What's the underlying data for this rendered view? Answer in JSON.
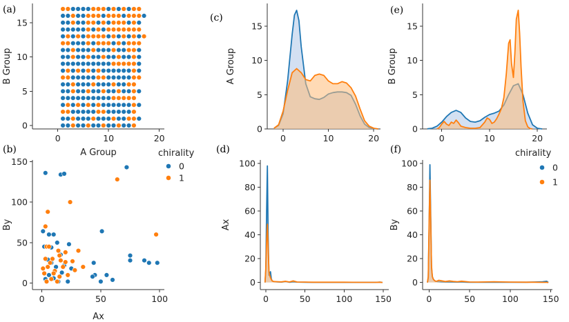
{
  "colors": {
    "c0": "#1f77b4",
    "c1": "#ff7f0e",
    "fill0": "#aec7e8",
    "fill1": "#ffbb78"
  },
  "legend": {
    "title": "chirality",
    "labels": [
      "0",
      "1"
    ]
  },
  "chart_data": [
    {
      "id": "a",
      "panel_label": "(a)",
      "type": "scatter",
      "xlabel": "A Group",
      "ylabel": "B Group",
      "xlim": [
        -5,
        21
      ],
      "ylim": [
        -0.5,
        17.8
      ],
      "xticks": [
        0,
        10,
        20
      ],
      "yticks": [
        0,
        5,
        10,
        15
      ],
      "grid_x": [
        1,
        17
      ],
      "grid_y": [
        0,
        17
      ],
      "series": [
        {
          "name": "0",
          "pattern": [
            ".............",
            "..",
            ""
          ]
        },
        {
          "name": "1"
        }
      ]
    },
    {
      "id": "b",
      "panel_label": "(b)",
      "type": "scatter",
      "xlabel": "Ax",
      "ylabel": "By",
      "xlim": [
        -8,
        104
      ],
      "ylim": [
        -8,
        152
      ],
      "xticks": [
        0,
        50,
        100
      ],
      "yticks": [
        0,
        50,
        100,
        150
      ],
      "series": [
        {
          "name": "0",
          "points": [
            [
              3,
              136
            ],
            [
              16,
              134
            ],
            [
              19,
              135
            ],
            [
              72,
              143
            ],
            [
              51,
              64
            ],
            [
              1,
              64
            ],
            [
              6,
              60
            ],
            [
              10,
              60
            ],
            [
              13,
              50
            ],
            [
              23,
              48
            ],
            [
              2,
              45
            ],
            [
              8,
              44
            ],
            [
              16,
              35
            ],
            [
              5,
              29
            ],
            [
              8,
              25
            ],
            [
              75,
              34
            ],
            [
              75,
              28
            ],
            [
              87,
              28
            ],
            [
              91,
              25
            ],
            [
              98,
              25
            ],
            [
              44,
              25
            ],
            [
              45,
              10
            ],
            [
              50,
              2
            ],
            [
              55,
              10
            ],
            [
              60,
              4
            ],
            [
              43,
              8
            ],
            [
              22,
              2
            ],
            [
              25,
              18
            ],
            [
              17,
              13
            ],
            [
              12,
              20
            ],
            [
              3,
              5
            ],
            [
              6,
              10
            ],
            [
              10,
              6
            ],
            [
              14,
              2
            ],
            [
              19,
              22
            ]
          ]
        },
        {
          "name": "1",
          "points": [
            [
              64,
              128
            ],
            [
              24,
              100
            ],
            [
              5,
              88
            ],
            [
              3,
              70
            ],
            [
              4,
              45
            ],
            [
              6,
              45
            ],
            [
              14,
              40
            ],
            [
              31,
              40
            ],
            [
              9,
              30
            ],
            [
              15,
              34
            ],
            [
              20,
              38
            ],
            [
              26,
              27
            ],
            [
              28,
              16
            ],
            [
              35,
              20
            ],
            [
              20,
              26
            ],
            [
              97,
              60
            ],
            [
              2,
              12
            ],
            [
              5,
              20
            ],
            [
              8,
              5
            ],
            [
              11,
              15
            ],
            [
              15,
              8
            ],
            [
              18,
              20
            ],
            [
              22,
              10
            ],
            [
              4,
              2
            ],
            [
              13,
              2
            ],
            [
              7,
              25
            ],
            [
              10,
              12
            ],
            [
              3,
              30
            ],
            [
              16,
              28
            ],
            [
              1,
              18
            ]
          ]
        }
      ]
    },
    {
      "id": "c",
      "panel_label": "(c)",
      "type": "area",
      "xlabel": "",
      "ylabel": "A Group",
      "xlim": [
        -3.5,
        21.5
      ],
      "ylim": [
        0,
        18.3
      ],
      "xticks": [
        0,
        10,
        20
      ],
      "yticks": [
        0,
        5,
        10,
        15
      ],
      "series": [
        {
          "name": "0",
          "x": [
            -2,
            -1,
            0,
            1,
            2,
            2.5,
            3,
            3.5,
            4,
            5,
            6,
            7,
            8,
            9,
            10,
            11,
            12,
            13,
            14,
            15,
            16,
            17,
            18,
            19,
            20,
            21
          ],
          "y": [
            0.1,
            0.5,
            2.2,
            7.0,
            13.8,
            16.6,
            17.3,
            15.8,
            12.0,
            6.6,
            4.7,
            4.4,
            4.3,
            4.6,
            5.1,
            5.3,
            5.4,
            5.4,
            5.3,
            4.9,
            3.6,
            1.9,
            0.7,
            0.2,
            0.05,
            0
          ]
        },
        {
          "name": "1",
          "x": [
            -2,
            -1,
            0,
            1,
            2,
            3,
            4,
            5,
            6,
            7,
            8,
            9,
            10,
            11,
            12,
            13,
            14,
            15,
            16,
            17,
            18,
            19,
            20,
            21
          ],
          "y": [
            0.1,
            0.6,
            2.6,
            5.6,
            8.2,
            8.8,
            8.2,
            7.2,
            7.0,
            7.8,
            8.0,
            7.8,
            7.0,
            6.6,
            6.6,
            6.9,
            6.7,
            6.0,
            4.8,
            2.9,
            1.2,
            0.4,
            0.1,
            0
          ]
        }
      ]
    },
    {
      "id": "e",
      "panel_label": "(e)",
      "type": "area",
      "xlabel": "",
      "ylabel": "B Group",
      "xlim": [
        -4,
        22
      ],
      "ylim": [
        0,
        18.3
      ],
      "xticks": [
        0,
        10,
        20
      ],
      "yticks": [
        0,
        5,
        10,
        15
      ],
      "series": [
        {
          "name": "0",
          "x": [
            -3,
            -2,
            -1,
            0,
            1,
            2,
            3,
            4,
            5,
            6,
            7,
            8,
            9,
            10,
            11,
            12,
            13,
            14,
            15,
            16,
            17,
            18,
            19,
            20,
            21
          ],
          "y": [
            0.02,
            0.1,
            0.4,
            1.0,
            1.8,
            2.4,
            2.7,
            2.4,
            1.6,
            1.1,
            1.0,
            1.2,
            1.7,
            2.1,
            2.3,
            2.6,
            3.5,
            5.0,
            6.3,
            6.6,
            5.0,
            2.3,
            0.6,
            0.1,
            0
          ]
        },
        {
          "name": "1",
          "x": [
            -1,
            -0.5,
            0,
            0.5,
            1,
            1.5,
            2,
            2.5,
            3,
            3.5,
            4,
            5,
            6,
            7,
            8,
            9,
            9.5,
            10,
            10.5,
            11,
            11.5,
            12,
            12.5,
            13,
            13.5,
            14,
            14.3,
            14.6,
            15,
            15.3,
            15.6,
            16,
            16.3,
            16.6,
            17,
            17.5,
            18,
            18.5,
            19
          ],
          "y": [
            0,
            0.2,
            0.7,
            1.1,
            0.7,
            0.5,
            1.0,
            0.8,
            1.3,
            0.9,
            0.4,
            0.2,
            0.1,
            0.1,
            0.2,
            1.0,
            1.6,
            1.4,
            0.8,
            1.0,
            1.5,
            2.2,
            3.0,
            4.6,
            8.0,
            12.5,
            13.0,
            9.5,
            7.5,
            11.0,
            16.0,
            17.3,
            14.0,
            9.0,
            4.0,
            1.2,
            0.3,
            0.05,
            0
          ]
        }
      ]
    },
    {
      "id": "d",
      "panel_label": "(d)",
      "type": "area",
      "xlabel": "",
      "ylabel": "Ax",
      "xlim": [
        -7,
        157
      ],
      "ylim": [
        -6,
        103
      ],
      "xticks": [
        0,
        50,
        100,
        150
      ],
      "yticks": [
        0,
        20,
        40,
        60,
        80,
        100
      ],
      "series": [
        {
          "name": "0",
          "x": [
            -1,
            0,
            1,
            2,
            3,
            4,
            5,
            6,
            7,
            8,
            9,
            10,
            12,
            15,
            20,
            25,
            30,
            35,
            40,
            50,
            60,
            80,
            100,
            120,
            140,
            146,
            149
          ],
          "y": [
            0,
            10,
            60,
            98,
            40,
            6,
            8,
            9,
            3,
            1.5,
            1,
            0.8,
            0.6,
            0.5,
            0.3,
            0.8,
            0.2,
            0.5,
            0.3,
            0.2,
            0.1,
            0.1,
            0.1,
            0.1,
            0.1,
            0.3,
            0
          ]
        },
        {
          "name": "1",
          "x": [
            -1,
            0,
            1,
            2,
            3,
            4,
            5,
            6,
            7,
            8,
            9,
            10,
            12,
            15,
            20,
            25,
            30,
            35,
            40,
            50,
            60,
            80,
            100,
            120,
            140,
            146,
            149
          ],
          "y": [
            0,
            12,
            35,
            49,
            30,
            9,
            6,
            4,
            2.5,
            1.5,
            1,
            0.8,
            0.7,
            0.6,
            0.5,
            1,
            0.4,
            1.3,
            0.4,
            0.3,
            0.2,
            0.2,
            0.2,
            0.1,
            0.1,
            0.2,
            0
          ]
        }
      ]
    },
    {
      "id": "f",
      "panel_label": "(f)",
      "type": "area",
      "xlabel": "",
      "ylabel": "By",
      "xlim": [
        -8,
        152
      ],
      "ylim": [
        -6,
        103
      ],
      "xticks": [
        0,
        50,
        100,
        150
      ],
      "yticks": [
        0,
        20,
        40,
        60,
        80,
        100
      ],
      "series": [
        {
          "name": "0",
          "x": [
            -2,
            -1,
            0,
            1,
            2,
            3,
            4,
            5,
            6,
            7,
            8,
            10,
            12,
            15,
            20,
            25,
            30,
            35,
            40,
            50,
            60,
            80,
            100,
            120,
            130,
            140,
            145,
            147
          ],
          "y": [
            0,
            4,
            45,
            99,
            55,
            12,
            5,
            3,
            2,
            1.5,
            1,
            0.8,
            0.6,
            0.5,
            0.4,
            0.3,
            0.3,
            0.3,
            0.3,
            0.2,
            0.2,
            0.2,
            0.2,
            0.2,
            0.4,
            0.6,
            1.0,
            0
          ]
        },
        {
          "name": "1",
          "x": [
            -2,
            -1,
            0,
            1,
            2,
            3,
            4,
            5,
            6,
            7,
            8,
            10,
            12,
            15,
            20,
            25,
            30,
            35,
            40,
            50,
            60,
            80,
            100,
            120,
            130,
            140,
            145,
            147
          ],
          "y": [
            0,
            5,
            50,
            86,
            50,
            14,
            5,
            3,
            2,
            1.4,
            1,
            1.2,
            1.8,
            1.5,
            0.8,
            1.3,
            0.9,
            0.6,
            1.1,
            0.4,
            0.3,
            0.6,
            0.3,
            0.2,
            0.2,
            0.1,
            0.1,
            0
          ]
        }
      ]
    }
  ]
}
